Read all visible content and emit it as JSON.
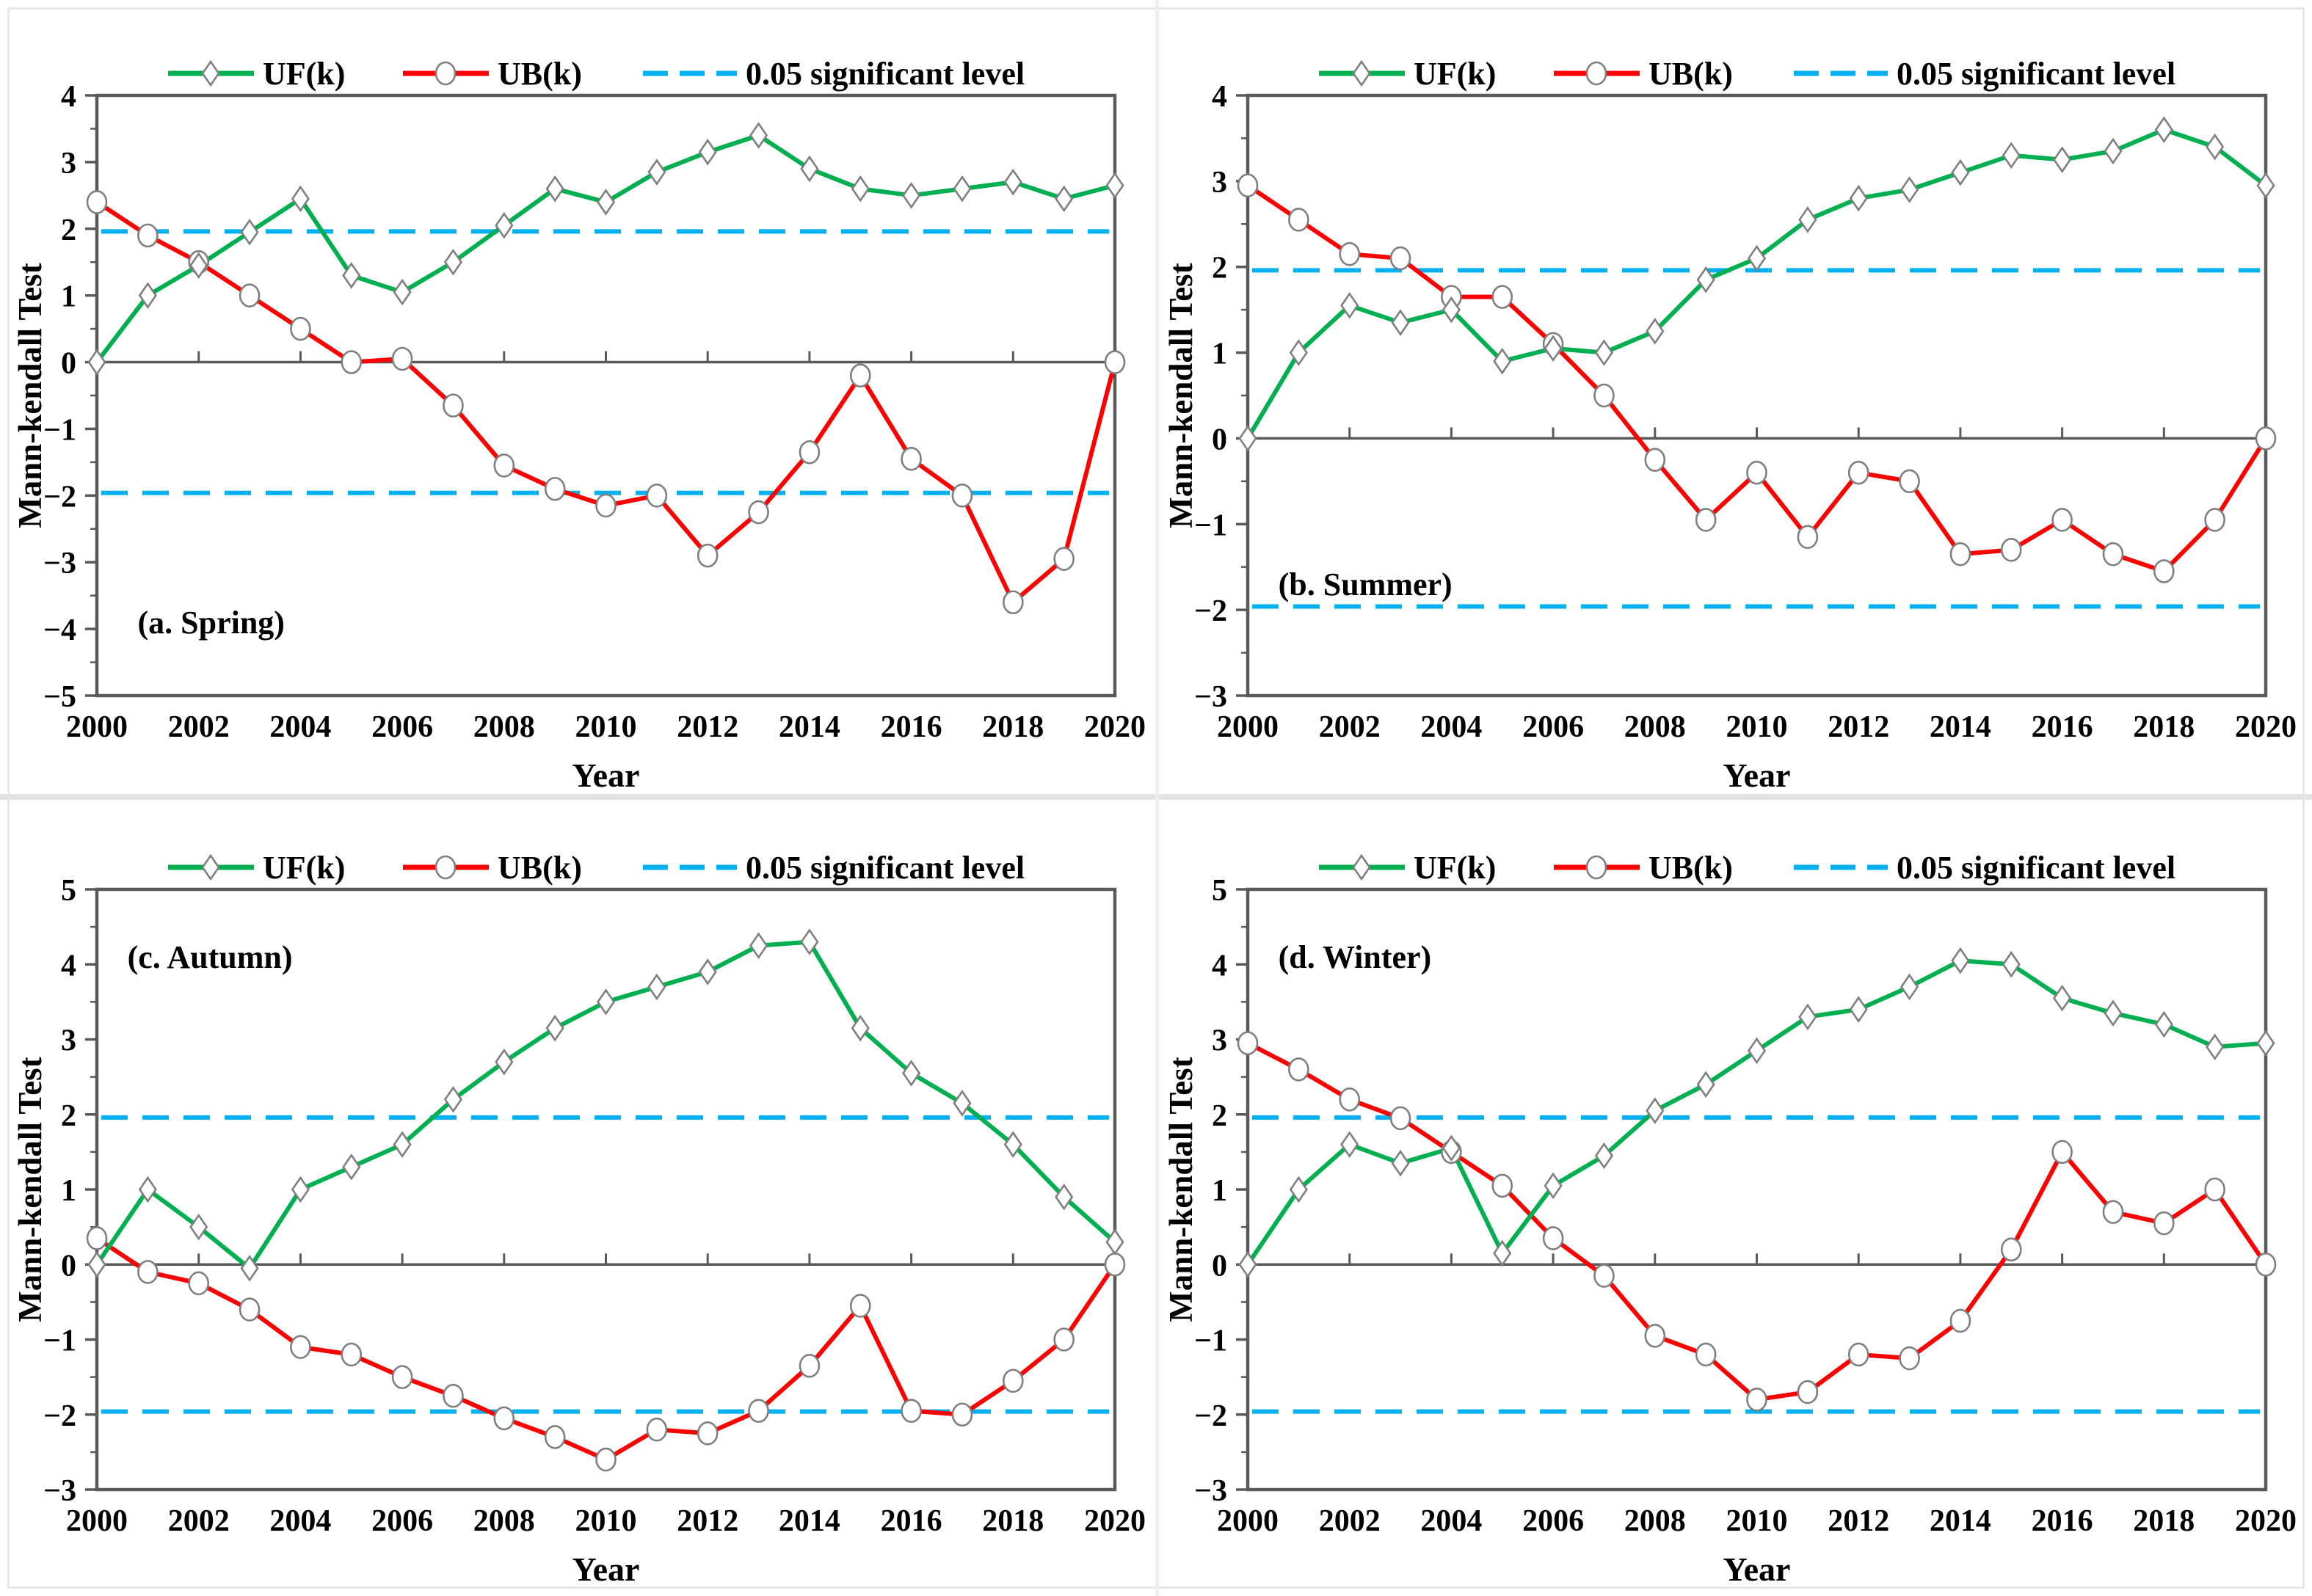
{
  "figure": {
    "x_title": "Year",
    "y_title": "Mann-kendall Test",
    "legend": {
      "uf_label": "UF(k)",
      "ub_label": "UB(k)",
      "sig_label": "0.05 significant level"
    },
    "colors": {
      "uf": "#00B050",
      "ub": "#FF0000",
      "sig": "#00B0F0",
      "axis": "#595959",
      "marker_stroke": "#7F7F7F",
      "text": "#000000"
    }
  },
  "chart_data": [
    {
      "type": "line",
      "title": "(a. Spring)",
      "xlabel": "Year",
      "ylabel": "Mann-kendall Test",
      "x": [
        2000,
        2001,
        2002,
        2003,
        2004,
        2005,
        2006,
        2007,
        2008,
        2009,
        2010,
        2011,
        2012,
        2013,
        2014,
        2015,
        2016,
        2017,
        2018,
        2019,
        2020
      ],
      "series": [
        {
          "name": "UF(k)",
          "marker": "diamond",
          "values": [
            0,
            1.0,
            1.45,
            1.95,
            2.45,
            1.3,
            1.05,
            1.5,
            2.05,
            2.6,
            2.4,
            2.85,
            3.15,
            3.4,
            2.9,
            2.6,
            2.5,
            2.6,
            2.7,
            2.45,
            2.65
          ]
        },
        {
          "name": "UB(k)",
          "marker": "circle",
          "values": [
            2.4,
            1.9,
            1.5,
            1.0,
            0.5,
            0.0,
            0.05,
            -0.65,
            -1.55,
            -1.9,
            -2.15,
            -2.0,
            -2.9,
            -2.25,
            -1.35,
            -0.2,
            -1.45,
            -2.0,
            -3.6,
            -2.95,
            0.0
          ]
        }
      ],
      "significance_level": 1.96,
      "ylim": [
        -5,
        4
      ],
      "x_tick_step": 2,
      "grid": false,
      "legend_position": "top-center",
      "caption_pos": {
        "x": 2000.8,
        "y": -3.9
      }
    },
    {
      "type": "line",
      "title": "(b. Summer)",
      "xlabel": "Year",
      "ylabel": "Mann-kendall Test",
      "x": [
        2000,
        2001,
        2002,
        2003,
        2004,
        2005,
        2006,
        2007,
        2008,
        2009,
        2010,
        2011,
        2012,
        2013,
        2014,
        2015,
        2016,
        2017,
        2018,
        2019,
        2020
      ],
      "series": [
        {
          "name": "UF(k)",
          "marker": "diamond",
          "values": [
            0,
            1.0,
            1.55,
            1.35,
            1.5,
            0.9,
            1.05,
            1.0,
            1.25,
            1.85,
            2.1,
            2.55,
            2.8,
            2.9,
            3.1,
            3.3,
            3.25,
            3.35,
            3.6,
            3.4,
            2.95
          ]
        },
        {
          "name": "UB(k)",
          "marker": "circle",
          "values": [
            2.95,
            2.55,
            2.15,
            2.1,
            1.65,
            1.65,
            1.1,
            0.5,
            -0.25,
            -0.95,
            -0.4,
            -1.15,
            -0.4,
            -0.5,
            -1.35,
            -1.3,
            -0.95,
            -1.35,
            -1.55,
            -0.95,
            0.0
          ]
        }
      ],
      "significance_level": 1.96,
      "ylim": [
        -3,
        4
      ],
      "x_tick_step": 2,
      "grid": false,
      "legend_position": "top-center",
      "caption_pos": {
        "x": 2000.6,
        "y": -1.7
      }
    },
    {
      "type": "line",
      "title": "(c. Autumn)",
      "xlabel": "Year",
      "ylabel": "Mann-kendall Test",
      "x": [
        2000,
        2001,
        2002,
        2003,
        2004,
        2005,
        2006,
        2007,
        2008,
        2009,
        2010,
        2011,
        2012,
        2013,
        2014,
        2015,
        2016,
        2017,
        2018,
        2019,
        2020
      ],
      "series": [
        {
          "name": "UF(k)",
          "marker": "diamond",
          "values": [
            0,
            1.0,
            0.5,
            -0.05,
            1.0,
            1.3,
            1.6,
            2.2,
            2.7,
            3.15,
            3.5,
            3.7,
            3.9,
            4.25,
            4.3,
            3.15,
            2.55,
            2.15,
            1.6,
            0.9,
            0.3
          ]
        },
        {
          "name": "UB(k)",
          "marker": "circle",
          "values": [
            0.35,
            -0.1,
            -0.25,
            -0.6,
            -1.1,
            -1.2,
            -1.5,
            -1.75,
            -2.05,
            -2.3,
            -2.6,
            -2.2,
            -2.25,
            -1.95,
            -1.35,
            -0.55,
            -1.95,
            -2.0,
            -1.55,
            -1.0,
            0.0
          ]
        }
      ],
      "significance_level": 1.96,
      "ylim": [
        -3,
        5
      ],
      "x_tick_step": 2,
      "grid": false,
      "legend_position": "top-center",
      "caption_pos": {
        "x": 2000.6,
        "y": 4.1
      }
    },
    {
      "type": "line",
      "title": "(d. Winter)",
      "xlabel": "Year",
      "ylabel": "Mann-kendall Test",
      "x": [
        2000,
        2001,
        2002,
        2003,
        2004,
        2005,
        2006,
        2007,
        2008,
        2009,
        2010,
        2011,
        2012,
        2013,
        2014,
        2015,
        2016,
        2017,
        2018,
        2019,
        2020
      ],
      "series": [
        {
          "name": "UF(k)",
          "marker": "diamond",
          "values": [
            0,
            1.0,
            1.6,
            1.35,
            1.55,
            0.15,
            1.05,
            1.45,
            2.05,
            2.4,
            2.85,
            3.3,
            3.4,
            3.7,
            4.05,
            4.0,
            3.55,
            3.35,
            3.2,
            2.9,
            2.95
          ]
        },
        {
          "name": "UB(k)",
          "marker": "circle",
          "values": [
            2.95,
            2.6,
            2.2,
            1.95,
            1.5,
            1.05,
            0.35,
            -0.15,
            -0.95,
            -1.2,
            -1.8,
            -1.7,
            -1.2,
            -1.25,
            -0.75,
            0.2,
            1.5,
            0.7,
            0.55,
            1.0,
            0.0
          ]
        }
      ],
      "significance_level": 1.96,
      "ylim": [
        -3,
        5
      ],
      "x_tick_step": 2,
      "grid": false,
      "legend_position": "top-center",
      "caption_pos": {
        "x": 2000.6,
        "y": 4.1
      }
    }
  ]
}
